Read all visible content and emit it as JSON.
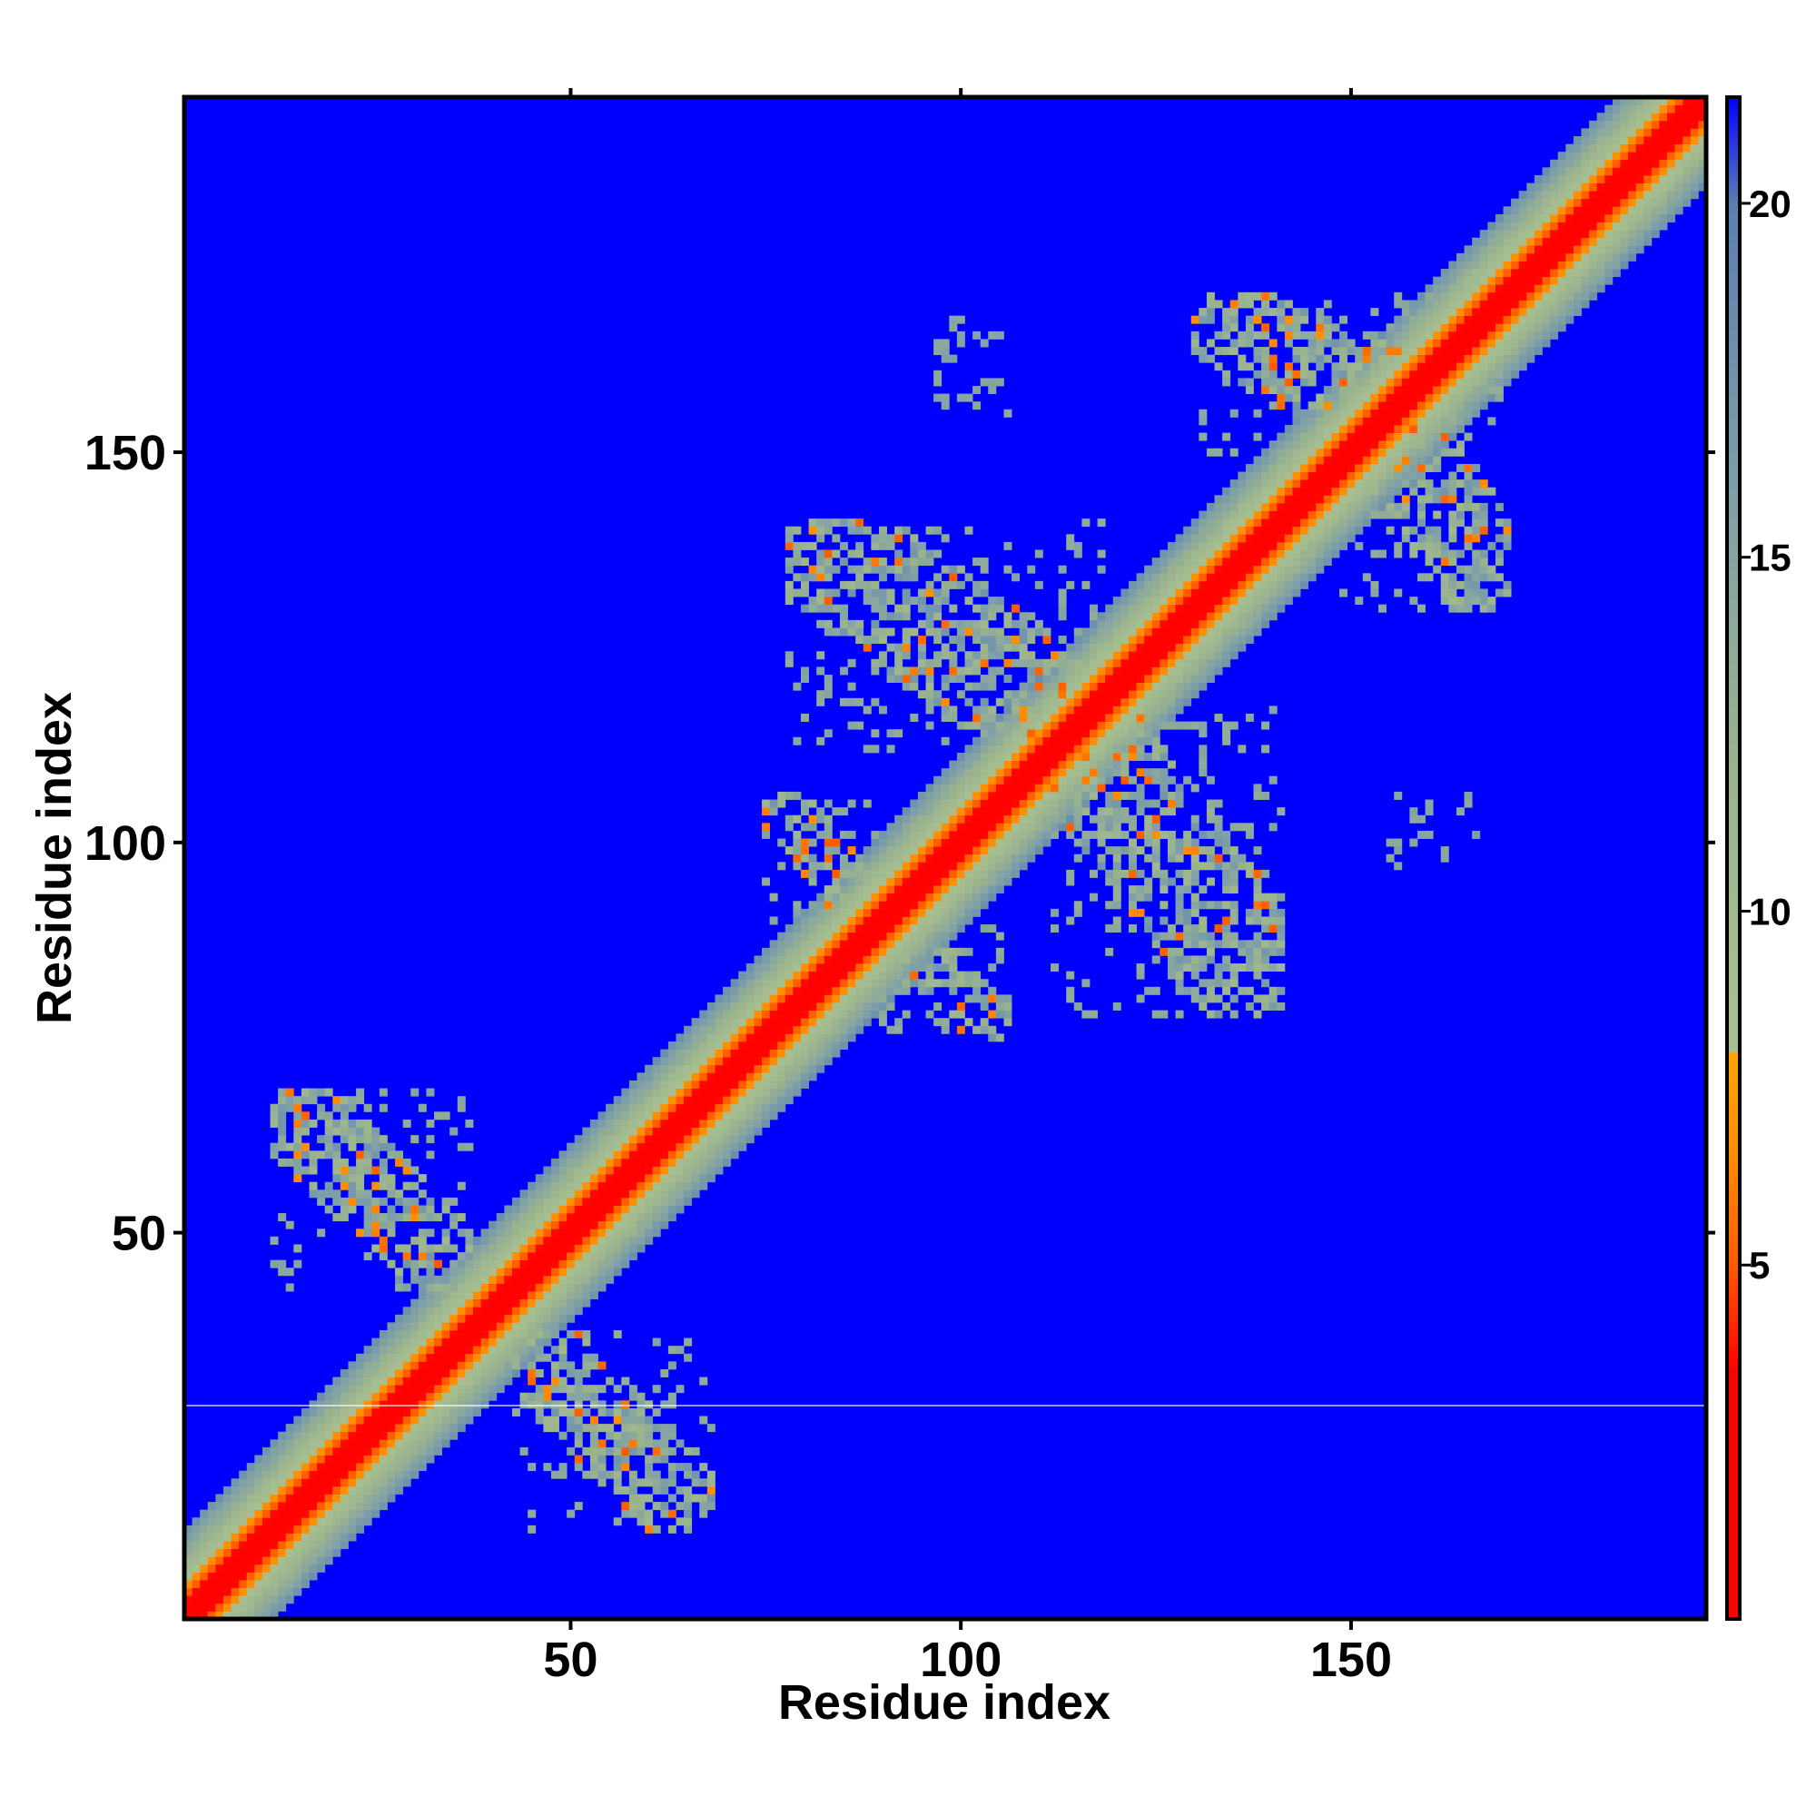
{
  "chart_data": {
    "type": "heatmap",
    "title": "",
    "xlabel": "Residue index",
    "ylabel": "Residue index",
    "xlim": [
      1,
      195
    ],
    "ylim": [
      1,
      195
    ],
    "x_ticks": [
      50,
      100,
      150
    ],
    "y_ticks": [
      50,
      100,
      150
    ],
    "colorbar": {
      "ticks": [
        5,
        10,
        15,
        20
      ],
      "range": [
        0,
        21.5
      ],
      "color_stops": [
        {
          "value": 0.0,
          "color": "#ff0000"
        },
        {
          "value": 3.5,
          "color": "#ff0000"
        },
        {
          "value": 5.0,
          "color": "#ff5a00"
        },
        {
          "value": 6.5,
          "color": "#ff8c00"
        },
        {
          "value": 8.0,
          "color": "#ffa500"
        },
        {
          "value": 8.01,
          "color": "#a8c090"
        },
        {
          "value": 12.0,
          "color": "#9bb48e"
        },
        {
          "value": 16.0,
          "color": "#7f9fa8"
        },
        {
          "value": 20.0,
          "color": "#5a7fb0"
        },
        {
          "value": 21.5,
          "color": "#0000ff"
        }
      ]
    },
    "background_value": 21.5,
    "diagonal": {
      "core_value": 0.5,
      "width_residues": 11
    },
    "contact_regions": [
      {
        "x": [
          12,
          37
        ],
        "y": [
          43,
          68
        ],
        "orientation": "anti-diagonal"
      },
      {
        "x": [
          43,
          68
        ],
        "y": [
          12,
          37
        ],
        "orientation": "anti-diagonal"
      },
      {
        "x": [
          75,
          90
        ],
        "y": [
          90,
          106
        ],
        "orientation": "anti-diagonal"
      },
      {
        "x": [
          90,
          106
        ],
        "y": [
          75,
          90
        ],
        "orientation": "anti-diagonal"
      },
      {
        "x": [
          78,
          118
        ],
        "y": [
          112,
          141
        ],
        "orientation": "anti-diagonal"
      },
      {
        "x": [
          112,
          141
        ],
        "y": [
          78,
          118
        ],
        "orientation": "anti-diagonal"
      },
      {
        "x": [
          130,
          165
        ],
        "y": [
          148,
          170
        ],
        "orientation": "anti-diagonal"
      },
      {
        "x": [
          148,
          170
        ],
        "y": [
          130,
          165
        ],
        "orientation": "anti-diagonal"
      },
      {
        "x": [
          97,
          106
        ],
        "y": [
          155,
          167
        ],
        "orientation": "sparse"
      },
      {
        "x": [
          155,
          167
        ],
        "y": [
          97,
          106
        ],
        "orientation": "sparse"
      }
    ],
    "grid": false,
    "legend": "colorbar-right"
  }
}
